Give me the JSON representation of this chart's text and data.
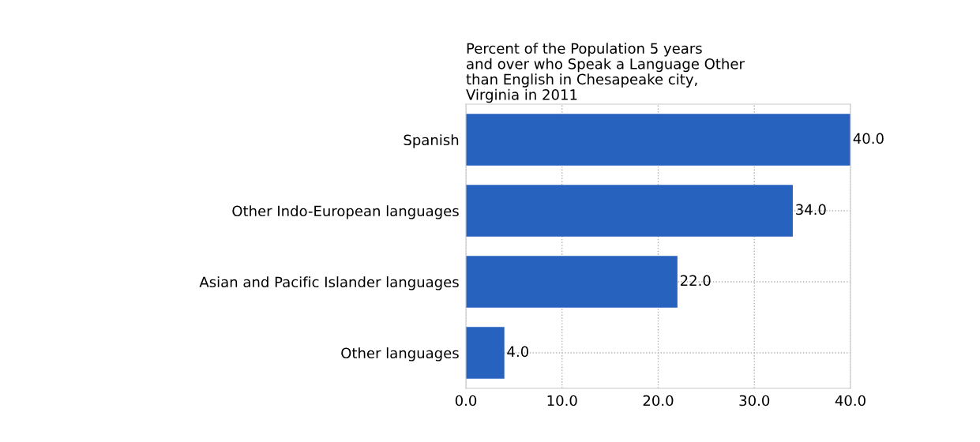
{
  "chart_data": {
    "type": "bar",
    "orientation": "horizontal",
    "title": "Percent of the Population 5 years\nand over who Speak a Language Other\nthan English in Chesapeake city,\nVirginia in 2011",
    "categories": [
      "Spanish",
      "Other Indo-European languages",
      "Asian and Pacific Islander languages",
      "Other languages"
    ],
    "values": [
      40.0,
      34.0,
      22.0,
      4.0
    ],
    "value_labels": [
      "40.0",
      "34.0",
      "22.0",
      "4.0"
    ],
    "color": "#2762be",
    "xlim": [
      0,
      40
    ],
    "xticks": [
      {
        "value": 0,
        "label": "0.0"
      },
      {
        "value": 10,
        "label": "10.0"
      },
      {
        "value": 20,
        "label": "20.0"
      },
      {
        "value": 30,
        "label": "30.0"
      },
      {
        "value": 40,
        "label": "40.0"
      }
    ],
    "grid": true
  }
}
